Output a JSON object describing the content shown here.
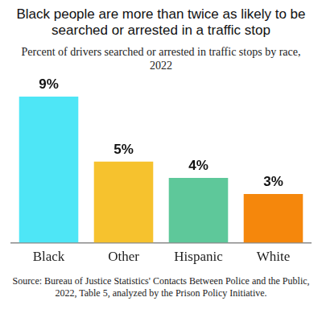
{
  "chart_data": {
    "type": "bar",
    "title": "Black people are more than twice as likely to be searched or arrested in a traffic stop",
    "subtitle": "Percent of drivers searched or arrested in traffic stops by race, 2022",
    "source": "Source: Bureau of Justice Statistics' Contacts Between Police and the Public, 2022, Table 5, analyzed by the Prison Policy Initiative.",
    "categories": [
      "Black",
      "Other",
      "Hispanic",
      "White"
    ],
    "values": [
      9,
      5,
      4,
      3
    ],
    "value_labels": [
      "9%",
      "5%",
      "4%",
      "3%"
    ],
    "colors": [
      "#4ee6f6",
      "#f6c22e",
      "#5ec89a",
      "#f5870c"
    ],
    "ylim": [
      0,
      9
    ],
    "grid": false,
    "data_labels": true,
    "tick_labels": "x"
  }
}
